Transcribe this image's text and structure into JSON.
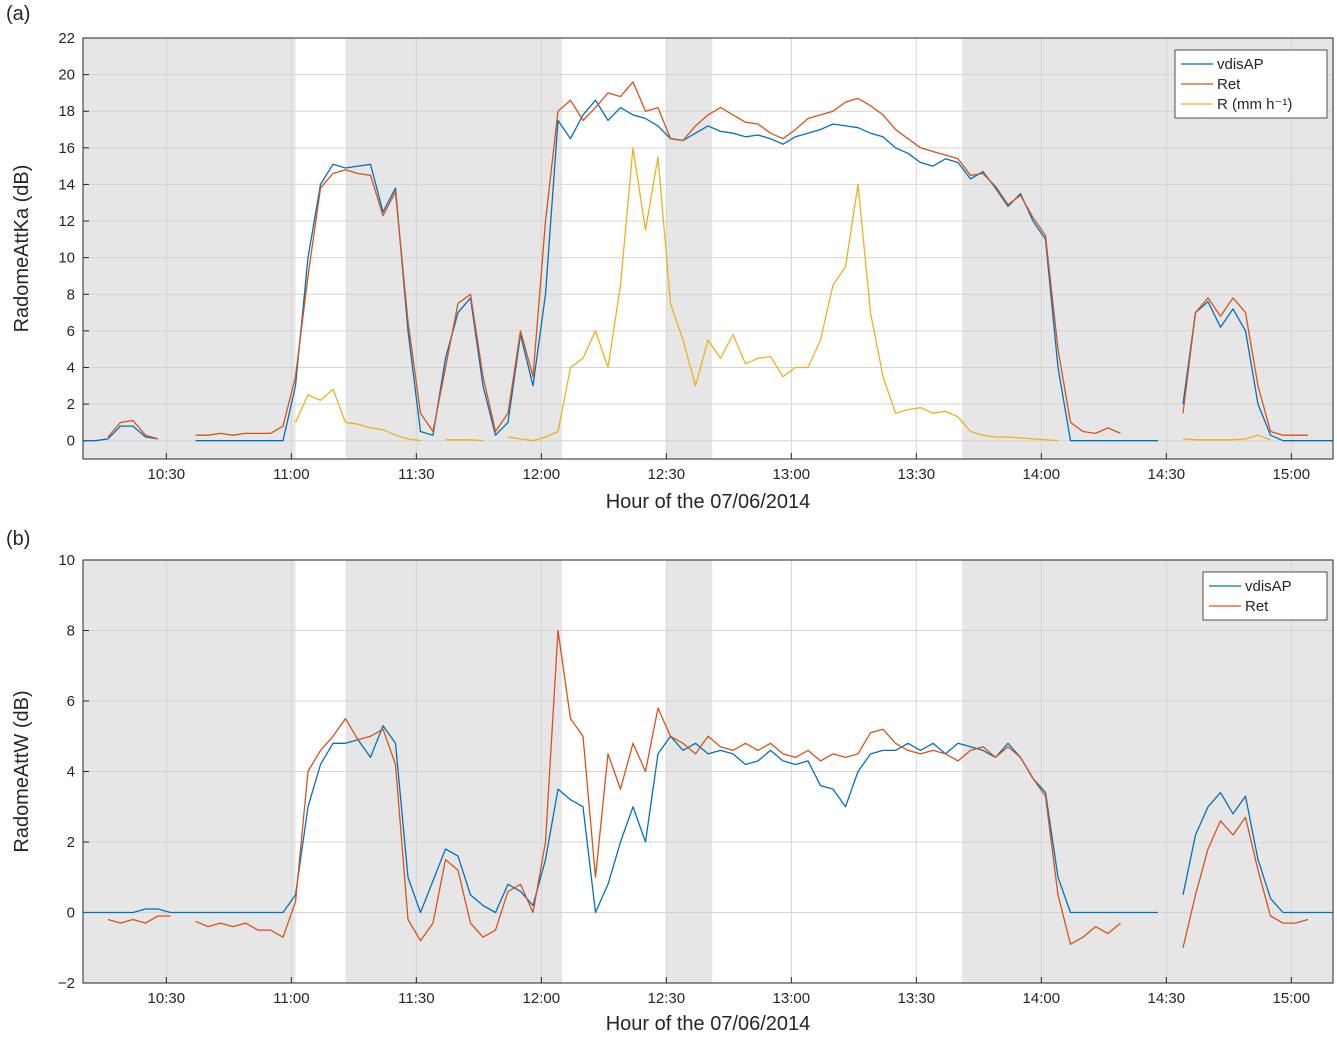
{
  "chart_data": [
    {
      "type": "line",
      "panel_label": "(a)",
      "xlabel": "Hour of the 07/06/2014",
      "ylabel": "RadomeAttKa (dB)",
      "x": [
        "10:10",
        "10:13",
        "10:16",
        "10:19",
        "10:22",
        "10:25",
        "10:28",
        "10:31",
        "10:34",
        "10:37",
        "10:40",
        "10:43",
        "10:46",
        "10:49",
        "10:52",
        "10:55",
        "10:58",
        "11:01",
        "11:04",
        "11:07",
        "11:10",
        "11:13",
        "11:16",
        "11:19",
        "11:22",
        "11:25",
        "11:28",
        "11:31",
        "11:34",
        "11:37",
        "11:40",
        "11:43",
        "11:46",
        "11:49",
        "11:52",
        "11:55",
        "11:58",
        "12:01",
        "12:04",
        "12:07",
        "12:10",
        "12:13",
        "12:16",
        "12:19",
        "12:22",
        "12:25",
        "12:28",
        "12:31",
        "12:34",
        "12:37",
        "12:40",
        "12:43",
        "12:46",
        "12:49",
        "12:52",
        "12:55",
        "12:58",
        "13:01",
        "13:04",
        "13:07",
        "13:10",
        "13:13",
        "13:16",
        "13:19",
        "13:22",
        "13:25",
        "13:28",
        "13:31",
        "13:34",
        "13:37",
        "13:40",
        "13:43",
        "13:46",
        "13:49",
        "13:52",
        "13:55",
        "13:58",
        "14:01",
        "14:04",
        "14:07",
        "14:10",
        "14:13",
        "14:16",
        "14:19",
        "14:22",
        "14:25",
        "14:28",
        "14:31",
        "14:34",
        "14:37",
        "14:40",
        "14:43",
        "14:46",
        "14:49",
        "14:52",
        "14:55",
        "14:58",
        "15:01",
        "15:04",
        "15:07",
        "15:10"
      ],
      "series": [
        {
          "name": "vdisAP",
          "color": "#0072bd",
          "values": [
            0,
            0,
            0.1,
            0.8,
            0.8,
            0.2,
            0.1,
            null,
            null,
            0,
            0,
            0,
            0,
            0,
            0,
            0,
            0,
            3,
            10,
            14,
            15.1,
            14.9,
            15.0,
            15.1,
            12.5,
            13.8,
            6,
            0.5,
            0.3,
            4.5,
            7,
            7.8,
            3,
            0.3,
            1,
            5.8,
            3,
            8,
            17.5,
            16.5,
            17.8,
            18.6,
            17.5,
            18.2,
            17.8,
            17.6,
            17.2,
            16.5,
            16.4,
            16.8,
            17.2,
            16.9,
            16.8,
            16.6,
            16.7,
            16.5,
            16.2,
            16.6,
            16.8,
            17.0,
            17.3,
            17.2,
            17.1,
            16.8,
            16.6,
            16.0,
            15.7,
            15.2,
            15.0,
            15.4,
            15.2,
            14.3,
            14.7,
            13.8,
            12.8,
            13.5,
            12.0,
            11.0,
            4,
            0,
            0,
            0,
            0,
            0,
            0,
            0,
            0,
            null,
            2,
            7,
            7.6,
            6.2,
            7.2,
            6.0,
            2,
            0.3,
            0,
            0,
            0,
            0,
            0
          ]
        },
        {
          "name": "Ret",
          "color": "#d95319",
          "values": [
            null,
            null,
            0.2,
            1.0,
            1.1,
            0.3,
            0.1,
            null,
            null,
            0.3,
            0.3,
            0.4,
            0.3,
            0.4,
            0.4,
            0.4,
            0.8,
            3.5,
            9,
            13.8,
            14.6,
            14.8,
            14.6,
            14.5,
            12.3,
            13.6,
            6.5,
            1.5,
            0.5,
            4,
            7.5,
            8.0,
            3.5,
            0.5,
            1.5,
            6.0,
            3.5,
            12,
            18,
            18.6,
            17.5,
            18.2,
            19.0,
            18.8,
            19.6,
            18.0,
            18.2,
            16.5,
            16.4,
            17.2,
            17.8,
            18.2,
            17.8,
            17.4,
            17.3,
            16.8,
            16.5,
            17.0,
            17.6,
            17.8,
            18.0,
            18.5,
            18.7,
            18.3,
            17.8,
            17.0,
            16.5,
            16.0,
            15.8,
            15.6,
            15.4,
            14.5,
            14.6,
            13.9,
            12.9,
            13.4,
            12.2,
            11.2,
            5,
            1.0,
            0.5,
            0.4,
            0.7,
            0.4,
            null,
            null,
            null,
            null,
            1.5,
            7.0,
            7.8,
            6.8,
            7.8,
            7.0,
            3.0,
            0.5,
            0.3,
            0.3,
            0.3,
            null,
            null
          ]
        },
        {
          "name": "R (mm h⁻¹)",
          "color": "#edb120",
          "values": [
            null,
            null,
            null,
            null,
            null,
            null,
            null,
            null,
            null,
            null,
            null,
            null,
            null,
            null,
            null,
            null,
            null,
            1,
            2.5,
            2.2,
            2.8,
            1.0,
            0.9,
            0.7,
            0.6,
            0.3,
            0.1,
            0,
            null,
            0.05,
            0.05,
            0.05,
            0,
            null,
            0.2,
            0.1,
            0,
            0.2,
            0.5,
            4.0,
            4.5,
            6.0,
            4.0,
            8.5,
            16.0,
            11.5,
            15.5,
            7.5,
            5.5,
            3.0,
            5.5,
            4.5,
            5.8,
            4.2,
            4.5,
            4.6,
            3.5,
            4.0,
            4.0,
            5.5,
            8.5,
            9.5,
            14.0,
            7.0,
            3.5,
            1.5,
            1.7,
            1.8,
            1.5,
            1.6,
            1.3,
            0.5,
            0.3,
            0.2,
            0.2,
            0.15,
            0.1,
            0.05,
            0,
            null,
            null,
            null,
            null,
            null,
            null,
            null,
            null,
            null,
            0.1,
            0.05,
            0.05,
            0.05,
            0.05,
            0.1,
            0.3,
            0.05,
            null,
            null,
            null,
            null,
            null
          ]
        }
      ],
      "xlim": [
        "10:10",
        "15:10"
      ],
      "xticks": [
        "10:30",
        "11:00",
        "11:30",
        "12:00",
        "12:30",
        "13:00",
        "13:30",
        "14:00",
        "14:30",
        "15:00"
      ],
      "ylim": [
        -1,
        22
      ],
      "yticks": [
        0,
        2,
        4,
        6,
        8,
        10,
        12,
        14,
        16,
        18,
        20,
        22
      ],
      "shaded_intervals": [
        [
          "10:10",
          "11:01"
        ],
        [
          "11:13",
          "12:05"
        ],
        [
          "12:30",
          "12:41"
        ],
        [
          "13:41",
          "15:10"
        ]
      ],
      "grid": true,
      "legend": "top-right"
    },
    {
      "type": "line",
      "panel_label": "(b)",
      "xlabel": "Hour of the 07/06/2014",
      "ylabel": "RadomeAttW (dB)",
      "x": [
        "10:10",
        "10:13",
        "10:16",
        "10:19",
        "10:22",
        "10:25",
        "10:28",
        "10:31",
        "10:34",
        "10:37",
        "10:40",
        "10:43",
        "10:46",
        "10:49",
        "10:52",
        "10:55",
        "10:58",
        "11:01",
        "11:04",
        "11:07",
        "11:10",
        "11:13",
        "11:16",
        "11:19",
        "11:22",
        "11:25",
        "11:28",
        "11:31",
        "11:34",
        "11:37",
        "11:40",
        "11:43",
        "11:46",
        "11:49",
        "11:52",
        "11:55",
        "11:58",
        "12:01",
        "12:04",
        "12:07",
        "12:10",
        "12:13",
        "12:16",
        "12:19",
        "12:22",
        "12:25",
        "12:28",
        "12:31",
        "12:34",
        "12:37",
        "12:40",
        "12:43",
        "12:46",
        "12:49",
        "12:52",
        "12:55",
        "12:58",
        "13:01",
        "13:04",
        "13:07",
        "13:10",
        "13:13",
        "13:16",
        "13:19",
        "13:22",
        "13:25",
        "13:28",
        "13:31",
        "13:34",
        "13:37",
        "13:40",
        "13:43",
        "13:46",
        "13:49",
        "13:52",
        "13:55",
        "13:58",
        "14:01",
        "14:04",
        "14:07",
        "14:10",
        "14:13",
        "14:16",
        "14:19",
        "14:22",
        "14:25",
        "14:28",
        "14:31",
        "14:34",
        "14:37",
        "14:40",
        "14:43",
        "14:46",
        "14:49",
        "14:52",
        "14:55",
        "14:58",
        "15:01",
        "15:04",
        "15:07",
        "15:10"
      ],
      "series": [
        {
          "name": "vdisAP",
          "color": "#0072bd",
          "values": [
            0,
            0,
            0,
            0,
            0,
            0.1,
            0.1,
            0,
            0,
            0,
            0,
            0,
            0,
            0,
            0,
            0,
            0,
            0.5,
            3,
            4.2,
            4.8,
            4.8,
            4.9,
            4.4,
            5.3,
            4.8,
            1.0,
            0,
            0.9,
            1.8,
            1.6,
            0.5,
            0.2,
            0,
            0.8,
            0.6,
            0.2,
            1.5,
            3.5,
            3.2,
            3.0,
            0,
            0.8,
            2.0,
            3.0,
            2.0,
            4.5,
            5.0,
            4.6,
            4.8,
            4.5,
            4.6,
            4.5,
            4.2,
            4.3,
            4.6,
            4.3,
            4.2,
            4.3,
            3.6,
            3.5,
            3.0,
            4.0,
            4.5,
            4.6,
            4.6,
            4.8,
            4.6,
            4.8,
            4.5,
            4.8,
            4.7,
            4.6,
            4.4,
            4.8,
            4.4,
            3.8,
            3.4,
            1,
            0,
            0,
            0,
            0,
            0,
            0,
            0,
            0,
            null,
            0.5,
            2.2,
            3.0,
            3.4,
            2.8,
            3.3,
            1.5,
            0.4,
            0,
            0,
            0,
            0,
            0
          ]
        },
        {
          "name": "Ret",
          "color": "#d95319",
          "values": [
            null,
            null,
            -0.2,
            -0.3,
            -0.2,
            -0.3,
            -0.1,
            -0.1,
            null,
            -0.25,
            -0.4,
            -0.3,
            -0.4,
            -0.3,
            -0.5,
            -0.5,
            -0.7,
            0.3,
            4.0,
            4.6,
            5.0,
            5.5,
            4.9,
            5.0,
            5.2,
            4.2,
            -0.2,
            -0.8,
            -0.3,
            1.5,
            1.2,
            -0.3,
            -0.7,
            -0.5,
            0.6,
            0.8,
            0.0,
            2.0,
            8.0,
            5.5,
            5.0,
            1.0,
            4.5,
            3.5,
            4.8,
            4.0,
            5.8,
            5.0,
            4.8,
            4.5,
            5.0,
            4.7,
            4.6,
            4.8,
            4.6,
            4.8,
            4.5,
            4.4,
            4.6,
            4.3,
            4.5,
            4.4,
            4.5,
            5.1,
            5.2,
            4.8,
            4.6,
            4.5,
            4.6,
            4.5,
            4.3,
            4.6,
            4.7,
            4.4,
            4.7,
            4.4,
            3.8,
            3.3,
            0.5,
            -0.9,
            -0.7,
            -0.4,
            -0.6,
            -0.3,
            null,
            null,
            null,
            null,
            -1.0,
            0.5,
            1.8,
            2.6,
            2.2,
            2.7,
            1.2,
            -0.1,
            -0.3,
            -0.3,
            -0.2,
            null,
            null
          ]
        }
      ],
      "xlim": [
        "10:10",
        "15:10"
      ],
      "xticks": [
        "10:30",
        "11:00",
        "11:30",
        "12:00",
        "12:30",
        "13:00",
        "13:30",
        "14:00",
        "14:30",
        "15:00"
      ],
      "ylim": [
        -2,
        10
      ],
      "yticks": [
        {
          "value": -2,
          "label": "−2"
        },
        0,
        2,
        4,
        6,
        8,
        10
      ],
      "shaded_intervals": [
        [
          "10:10",
          "11:01"
        ],
        [
          "11:13",
          "12:05"
        ],
        [
          "12:30",
          "12:41"
        ],
        [
          "13:41",
          "15:10"
        ]
      ],
      "grid": true,
      "legend": "top-right"
    }
  ]
}
